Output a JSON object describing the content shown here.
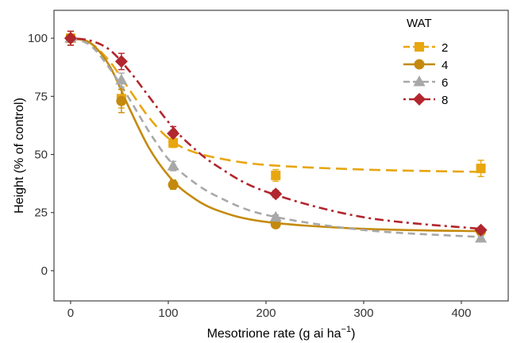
{
  "chart_data": {
    "type": "line",
    "xlabel": "Mesotrione rate (g ai ha",
    "xlabel_superscript": "−1",
    "xlabel_close": ")",
    "ylabel": "Height (% of control)",
    "xlim": [
      -17,
      448
    ],
    "ylim": [
      -13,
      112
    ],
    "x_ticks": [
      0,
      100,
      200,
      300,
      400
    ],
    "y_ticks": [
      0,
      25,
      50,
      75,
      100
    ],
    "grid": false,
    "legend": {
      "title": "WAT",
      "placement": "top-right"
    },
    "series": [
      {
        "name": "2",
        "color": "#E8A60F",
        "marker": "square",
        "line_style": "long-dash",
        "points": [
          {
            "x": 0,
            "y": 100,
            "err": 3
          },
          {
            "x": 52,
            "y": 74,
            "err": 4
          },
          {
            "x": 105,
            "y": 55,
            "err": 2
          },
          {
            "x": 210,
            "y": 41,
            "err": 2.5
          },
          {
            "x": 420,
            "y": 44,
            "err": 3.5
          }
        ],
        "curve": [
          [
            0,
            100
          ],
          [
            20,
            98
          ],
          [
            40,
            90
          ],
          [
            60,
            78
          ],
          [
            80,
            66
          ],
          [
            100,
            57
          ],
          [
            120,
            52
          ],
          [
            150,
            48.5
          ],
          [
            200,
            45.5
          ],
          [
            300,
            43.5
          ],
          [
            420,
            42.5
          ]
        ]
      },
      {
        "name": "4",
        "color": "#C48A0E",
        "marker": "circle",
        "line_style": "solid",
        "points": [
          {
            "x": 0,
            "y": 100,
            "err": 3
          },
          {
            "x": 52,
            "y": 73,
            "err": 5
          },
          {
            "x": 105,
            "y": 37,
            "err": 2
          },
          {
            "x": 210,
            "y": 20,
            "err": 1
          },
          {
            "x": 420,
            "y": 17,
            "err": 1
          }
        ],
        "curve": [
          [
            0,
            100
          ],
          [
            20,
            98
          ],
          [
            40,
            88
          ],
          [
            60,
            70
          ],
          [
            80,
            53
          ],
          [
            100,
            41
          ],
          [
            120,
            33
          ],
          [
            150,
            26
          ],
          [
            200,
            21
          ],
          [
            300,
            18
          ],
          [
            420,
            17
          ]
        ]
      },
      {
        "name": "6",
        "color": "#A8A8A8",
        "marker": "triangle",
        "line_style": "dash",
        "points": [
          {
            "x": 0,
            "y": 100,
            "err": 3
          },
          {
            "x": 52,
            "y": 82,
            "err": 3
          },
          {
            "x": 105,
            "y": 45,
            "err": 2
          },
          {
            "x": 210,
            "y": 23,
            "err": 1
          },
          {
            "x": 420,
            "y": 14,
            "err": 1
          }
        ],
        "curve": [
          [
            0,
            100
          ],
          [
            20,
            97
          ],
          [
            40,
            87
          ],
          [
            60,
            74
          ],
          [
            80,
            60
          ],
          [
            100,
            48
          ],
          [
            120,
            40
          ],
          [
            150,
            32
          ],
          [
            200,
            24
          ],
          [
            300,
            17.5
          ],
          [
            420,
            14.5
          ]
        ]
      },
      {
        "name": "8",
        "color": "#B2262E",
        "marker": "diamond",
        "line_style": "dot-dash",
        "points": [
          {
            "x": 0,
            "y": 100,
            "err": 3
          },
          {
            "x": 52,
            "y": 90,
            "err": 3.5
          },
          {
            "x": 105,
            "y": 59,
            "err": 3
          },
          {
            "x": 210,
            "y": 33,
            "err": 1.5
          },
          {
            "x": 420,
            "y": 17.5,
            "err": 1
          }
        ],
        "curve": [
          [
            0,
            100
          ],
          [
            20,
            99
          ],
          [
            40,
            95
          ],
          [
            60,
            86
          ],
          [
            80,
            75
          ],
          [
            100,
            64
          ],
          [
            120,
            55
          ],
          [
            150,
            45
          ],
          [
            200,
            34
          ],
          [
            300,
            23
          ],
          [
            420,
            18
          ]
        ]
      }
    ]
  }
}
